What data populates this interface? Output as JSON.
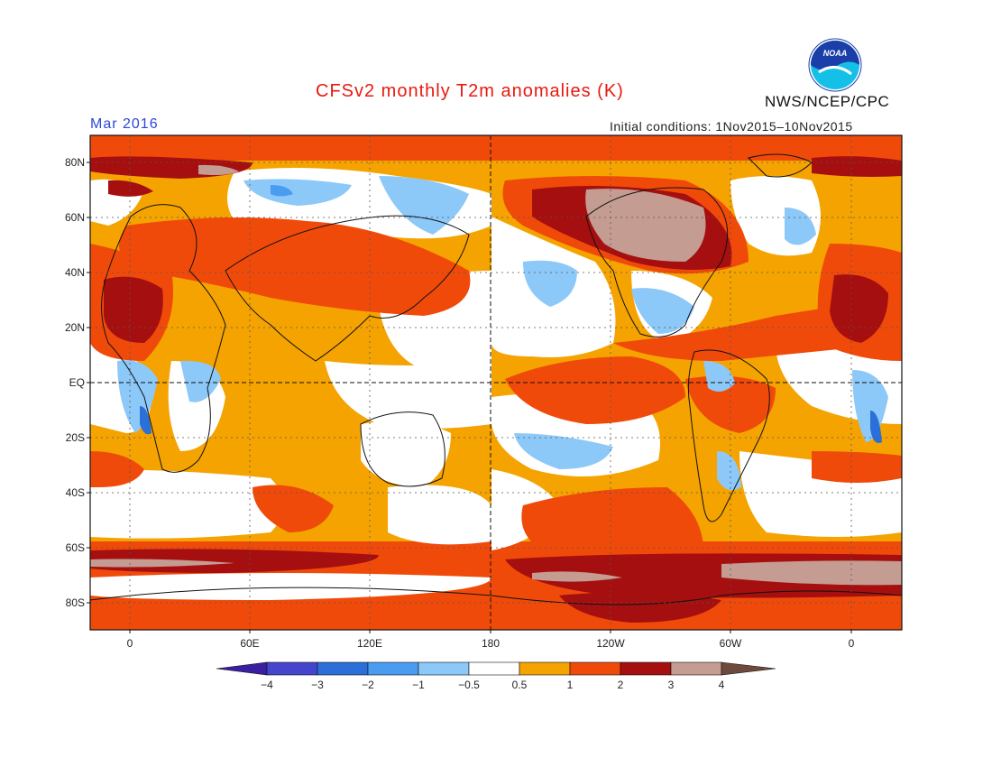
{
  "title": "CFSv2 monthly T2m anomalies (K)",
  "valid_month": "Mar 2016",
  "initial_conditions": "Initial conditions: 1Nov2015–10Nov2015",
  "agency": "NWS/NCEP/CPC",
  "logo": {
    "text": "NOAA",
    "icon": "noaa-logo-icon"
  },
  "latitude_labels": [
    "80N",
    "60N",
    "40N",
    "20N",
    "EQ",
    "20S",
    "40S",
    "60S",
    "80S"
  ],
  "longitude_labels": [
    "0",
    "60E",
    "120E",
    "180",
    "120W",
    "60W",
    "0"
  ],
  "colorbar": {
    "labels": [
      "−4",
      "−3",
      "−2",
      "−1",
      "−0.5",
      "0.5",
      "1",
      "2",
      "3",
      "4"
    ],
    "colors": [
      "#3a1fa0",
      "#4444cc",
      "#2a70d8",
      "#4a9cf0",
      "#8cc8f8",
      "#ffffff",
      "#f5a300",
      "#f04a0a",
      "#a60f0f",
      "#c49c92",
      "#6e4a3c"
    ]
  },
  "colors": {
    "title": "#e8190f",
    "month": "#2b48d8",
    "ocean_warm": "#f04a0a",
    "neutral": "#ffffff",
    "weak_warm": "#f5a300",
    "strong_warm": "#a60f0f",
    "extreme_warm": "#c49c92",
    "cool": "#8cc8f8",
    "cold": "#4a9cf0"
  }
}
